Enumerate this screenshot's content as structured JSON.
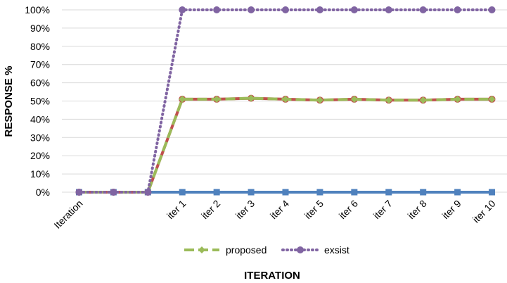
{
  "chart_data": {
    "type": "line",
    "title": "",
    "xlabel": "ITERATION",
    "ylabel": "RESPONSE %",
    "ylim": [
      0,
      100
    ],
    "ytick_step": 10,
    "ytick_suffix": "%",
    "grid": "horizontal",
    "legend_position": "bottom",
    "categories": [
      "Iteration",
      "",
      "",
      "iter 1",
      "iter 2",
      "iter 3",
      "iter 4",
      "iter 5",
      "iter 6",
      "iter 7",
      "iter 8",
      "iter 9",
      "iter 10"
    ],
    "series": [
      {
        "key": "blue",
        "color": "#4f81bd",
        "marker": "square",
        "dash": "solid",
        "in_legend": false,
        "values": [
          0,
          0,
          0,
          0,
          0,
          0,
          0,
          0,
          0,
          0,
          0,
          0,
          0
        ]
      },
      {
        "key": "red",
        "color": "#c0504d",
        "marker": "circle",
        "dash": "solid",
        "in_legend": false,
        "values": [
          0,
          0,
          0,
          51,
          51,
          51.5,
          51,
          50.5,
          51,
          50.5,
          50.5,
          51,
          51
        ]
      },
      {
        "key": "proposed",
        "name": "proposed",
        "color": "#9bbb59",
        "marker": "diamond",
        "dash": "dashed",
        "in_legend": true,
        "values": [
          0,
          0,
          0,
          51,
          51,
          51.5,
          51,
          50.5,
          51,
          50.5,
          50.5,
          51,
          51
        ]
      },
      {
        "key": "exsist",
        "name": "exsist",
        "color": "#8064a2",
        "marker": "circle",
        "dash": "dotted",
        "in_legend": true,
        "values": [
          0,
          0,
          0,
          100,
          100,
          100,
          100,
          100,
          100,
          100,
          100,
          100,
          100
        ]
      }
    ]
  }
}
